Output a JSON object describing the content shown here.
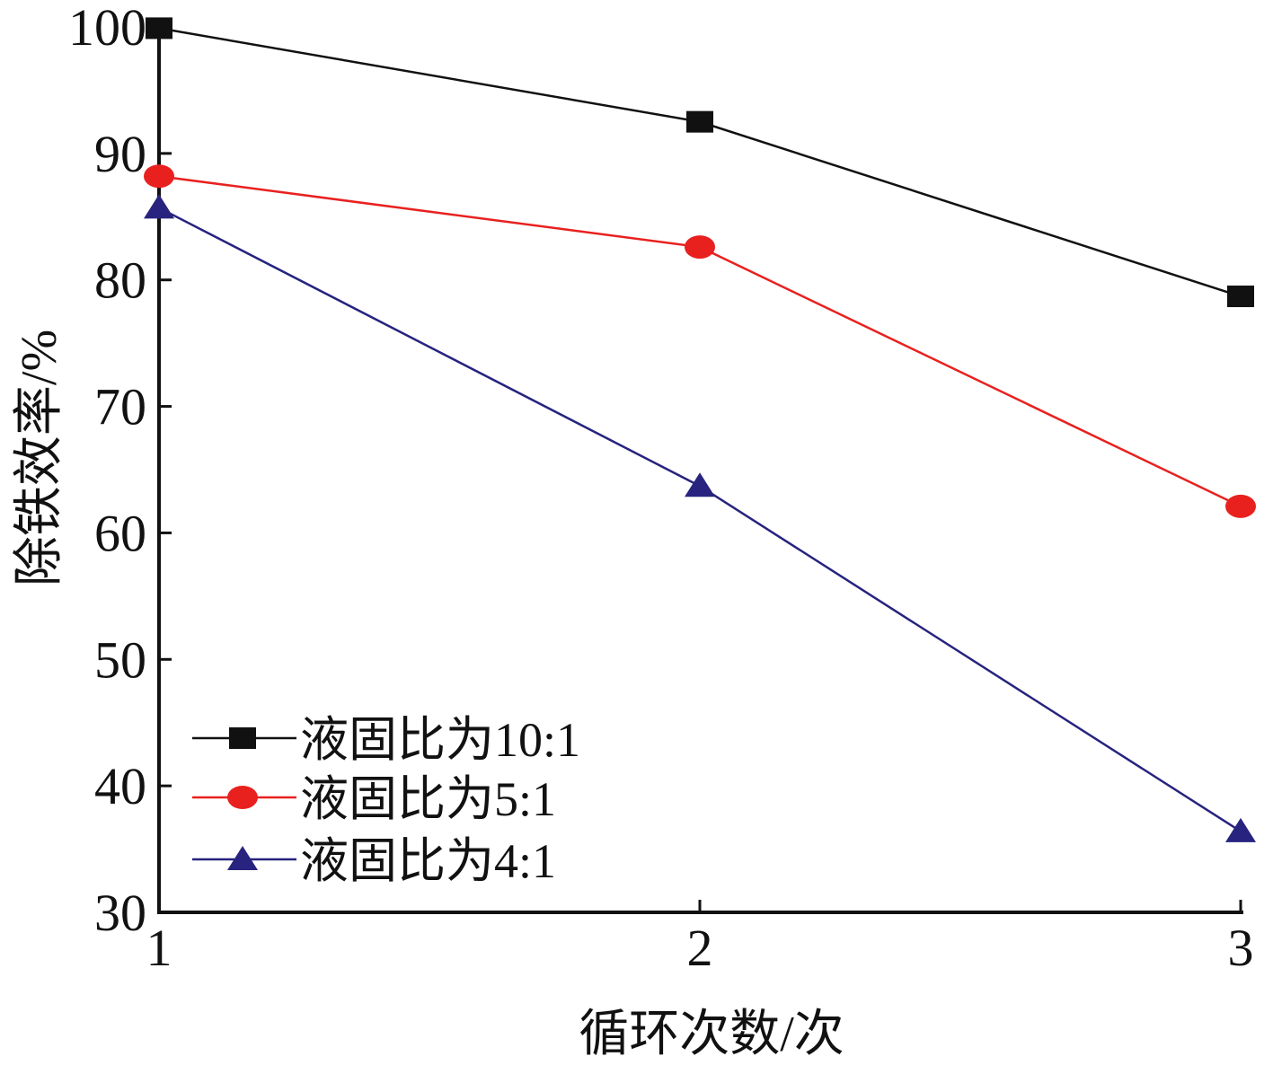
{
  "chart_data": {
    "type": "line",
    "title": "",
    "xlabel": "循环次数/次",
    "ylabel": "除铁效率/%",
    "x": [
      1,
      2,
      3
    ],
    "x_tick_labels": [
      "1",
      "2",
      "3"
    ],
    "xlim": [
      1,
      3
    ],
    "ylim": [
      30,
      100
    ],
    "y_ticks": [
      30,
      40,
      50,
      60,
      70,
      80,
      90,
      100
    ],
    "y_tick_labels": [
      "30",
      "40",
      "50",
      "60",
      "70",
      "80",
      "90",
      "100"
    ],
    "grid": false,
    "legend_position": "bottom-left",
    "series": [
      {
        "name": "液固比为10:1",
        "values": [
          99.9,
          92.5,
          78.7
        ],
        "color": "#111111",
        "marker": "square"
      },
      {
        "name": "液固比为5:1",
        "values": [
          88.2,
          82.6,
          62.1
        ],
        "color": "#e8211f",
        "marker": "circle"
      },
      {
        "name": "液固比为4:1",
        "values": [
          85.7,
          63.7,
          36.4
        ],
        "color": "#27237f",
        "marker": "triangle"
      }
    ]
  }
}
